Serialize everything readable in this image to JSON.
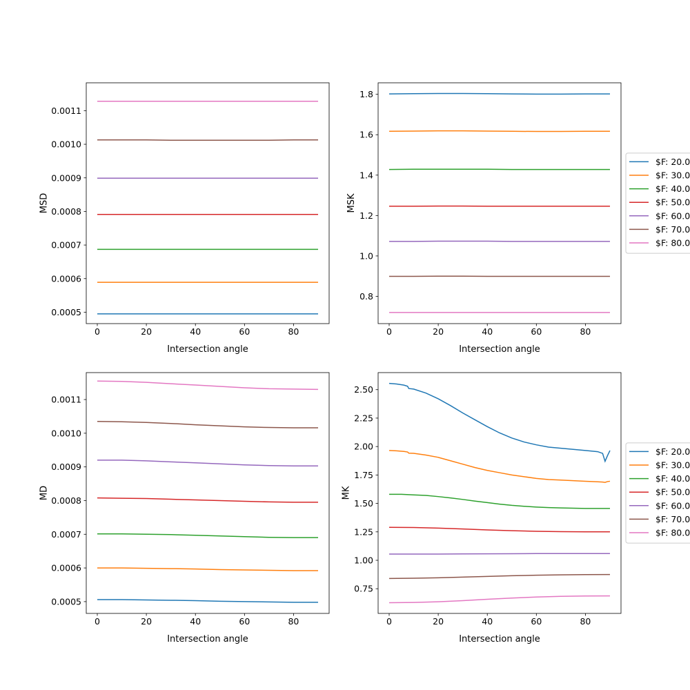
{
  "figure": {
    "series_colors": [
      "#1f77b4",
      "#ff7f0e",
      "#2ca02c",
      "#d62728",
      "#9467bd",
      "#8c564b",
      "#e377c2"
    ]
  },
  "chart_data": [
    {
      "id": "msd",
      "type": "line",
      "xlabel": "Intersection angle",
      "ylabel": "MSD",
      "xlim": [
        -4.5,
        94.5
      ],
      "ylim": [
        0.000466,
        0.001183
      ],
      "xticks": [
        0,
        20,
        40,
        60,
        80
      ],
      "xtick_labels": [
        "0",
        "20",
        "40",
        "60",
        "80"
      ],
      "yticks": [
        0.0005,
        0.0006,
        0.0007,
        0.0008,
        0.0009,
        0.001,
        0.0011
      ],
      "ytick_labels": [
        "0.0005",
        "0.0006",
        "0.0007",
        "0.0008",
        "0.0009",
        "0.0010",
        "0.0011"
      ],
      "x": [
        0,
        10,
        20,
        30,
        40,
        50,
        60,
        70,
        80,
        90
      ],
      "series": [
        {
          "values": [
            0.000495,
            0.000495,
            0.000495,
            0.000495,
            0.000495,
            0.000495,
            0.000495,
            0.000495,
            0.000495,
            0.000495
          ]
        },
        {
          "values": [
            0.000589,
            0.000589,
            0.000589,
            0.000589,
            0.000589,
            0.000589,
            0.000589,
            0.000589,
            0.000589,
            0.000589
          ]
        },
        {
          "values": [
            0.000687,
            0.000687,
            0.000687,
            0.000687,
            0.000687,
            0.000687,
            0.000687,
            0.000687,
            0.000687,
            0.000687
          ]
        },
        {
          "values": [
            0.000791,
            0.000791,
            0.000791,
            0.000791,
            0.000791,
            0.000791,
            0.000791,
            0.000791,
            0.000791,
            0.000791
          ]
        },
        {
          "values": [
            0.000899,
            0.000899,
            0.000899,
            0.000899,
            0.000899,
            0.000899,
            0.000899,
            0.000899,
            0.000899,
            0.000899
          ]
        },
        {
          "values": [
            0.001013,
            0.001013,
            0.001013,
            0.001012,
            0.001012,
            0.001012,
            0.001012,
            0.001012,
            0.001013,
            0.001013
          ]
        },
        {
          "values": [
            0.001128,
            0.001128,
            0.001128,
            0.001128,
            0.001128,
            0.001128,
            0.001128,
            0.001128,
            0.001128,
            0.001128
          ]
        }
      ]
    },
    {
      "id": "msk",
      "type": "line",
      "xlabel": "Intersection angle",
      "ylabel": "MSK",
      "xlim": [
        -4.5,
        94.5
      ],
      "ylim": [
        0.665,
        1.857
      ],
      "xticks": [
        0,
        20,
        40,
        60,
        80
      ],
      "xtick_labels": [
        "0",
        "20",
        "40",
        "60",
        "80"
      ],
      "yticks": [
        0.8,
        1.0,
        1.2,
        1.4,
        1.6,
        1.8
      ],
      "ytick_labels": [
        "0.8",
        "1.0",
        "1.2",
        "1.4",
        "1.6",
        "1.8"
      ],
      "legend_position": "right-outside",
      "legend": [
        "$F: 20.0",
        "$F: 30.0",
        "$F: 40.0",
        "$F: 50.0",
        "$F: 60.0",
        "$F: 70.0",
        "$F: 80.0"
      ],
      "x": [
        0,
        10,
        20,
        30,
        40,
        50,
        60,
        70,
        80,
        90
      ],
      "series": [
        {
          "values": [
            1.802,
            1.803,
            1.804,
            1.804,
            1.803,
            1.802,
            1.801,
            1.801,
            1.802,
            1.802
          ]
        },
        {
          "values": [
            1.617,
            1.618,
            1.619,
            1.619,
            1.618,
            1.617,
            1.616,
            1.616,
            1.617,
            1.617
          ]
        },
        {
          "values": [
            1.428,
            1.429,
            1.429,
            1.429,
            1.429,
            1.428,
            1.428,
            1.428,
            1.428,
            1.428
          ]
        },
        {
          "values": [
            1.246,
            1.246,
            1.247,
            1.247,
            1.246,
            1.246,
            1.246,
            1.246,
            1.246,
            1.246
          ]
        },
        {
          "values": [
            1.072,
            1.072,
            1.073,
            1.073,
            1.073,
            1.072,
            1.072,
            1.072,
            1.072,
            1.072
          ]
        },
        {
          "values": [
            0.899,
            0.899,
            0.9,
            0.9,
            0.899,
            0.899,
            0.899,
            0.899,
            0.899,
            0.899
          ]
        },
        {
          "values": [
            0.72,
            0.72,
            0.72,
            0.72,
            0.72,
            0.72,
            0.72,
            0.72,
            0.72,
            0.72
          ]
        }
      ]
    },
    {
      "id": "md",
      "type": "line",
      "xlabel": "Intersection angle",
      "ylabel": "MD",
      "xlim": [
        -4.5,
        94.5
      ],
      "ylim": [
        0.000465,
        0.00118
      ],
      "xticks": [
        0,
        20,
        40,
        60,
        80
      ],
      "xtick_labels": [
        "0",
        "20",
        "40",
        "60",
        "80"
      ],
      "yticks": [
        0.0005,
        0.0006,
        0.0007,
        0.0008,
        0.0009,
        0.001,
        0.0011
      ],
      "ytick_labels": [
        "0.0005",
        "0.0006",
        "0.0007",
        "0.0008",
        "0.0009",
        "0.0010",
        "0.0011"
      ],
      "x": [
        0,
        10,
        20,
        30,
        40,
        50,
        60,
        70,
        80,
        90
      ],
      "series": [
        {
          "values": [
            0.000506,
            0.000506,
            0.000505,
            0.000504,
            0.000503,
            0.000501,
            0.0005,
            0.000499,
            0.000498,
            0.000498
          ]
        },
        {
          "values": [
            0.0006,
            0.0006,
            0.000599,
            0.000598,
            0.000597,
            0.000595,
            0.000594,
            0.000593,
            0.000592,
            0.000592
          ]
        },
        {
          "values": [
            0.000701,
            0.000701,
            0.0007,
            0.000699,
            0.000697,
            0.000695,
            0.000693,
            0.000691,
            0.00069,
            0.00069
          ]
        },
        {
          "values": [
            0.000808,
            0.000807,
            0.000806,
            0.000804,
            0.000802,
            0.0008,
            0.000798,
            0.000796,
            0.000795,
            0.000795
          ]
        },
        {
          "values": [
            0.00092,
            0.00092,
            0.000918,
            0.000915,
            0.000912,
            0.000909,
            0.000906,
            0.000904,
            0.000903,
            0.000903
          ]
        },
        {
          "values": [
            0.001035,
            0.001034,
            0.001032,
            0.001029,
            0.001025,
            0.001022,
            0.001019,
            0.001017,
            0.001016,
            0.001016
          ]
        },
        {
          "values": [
            0.001155,
            0.001154,
            0.001151,
            0.001147,
            0.001143,
            0.001139,
            0.001135,
            0.001132,
            0.001131,
            0.00113
          ]
        }
      ]
    },
    {
      "id": "mk",
      "type": "line",
      "xlabel": "Intersection angle",
      "ylabel": "MK",
      "xlim": [
        -4.5,
        94.5
      ],
      "ylim": [
        0.533,
        2.65
      ],
      "xticks": [
        0,
        20,
        40,
        60,
        80
      ],
      "xtick_labels": [
        "0",
        "20",
        "40",
        "60",
        "80"
      ],
      "yticks": [
        0.75,
        1.0,
        1.25,
        1.5,
        1.75,
        2.0,
        2.25,
        2.5
      ],
      "ytick_labels": [
        "0.75",
        "1.00",
        "1.25",
        "1.50",
        "1.75",
        "2.00",
        "2.25",
        "2.50"
      ],
      "legend_position": "right-outside",
      "legend": [
        "$F: 20.0",
        "$F: 30.0",
        "$F: 40.0",
        "$F: 50.0",
        "$F: 60.0",
        "$F: 70.0",
        "$F: 80.0"
      ],
      "series": [
        {
          "x": [
            0,
            3,
            6,
            7.5,
            8,
            10,
            15,
            20,
            25,
            30,
            35,
            40,
            45,
            50,
            55,
            60,
            65,
            70,
            75,
            80,
            85,
            87,
            88,
            89,
            90
          ],
          "values": [
            2.555,
            2.55,
            2.54,
            2.53,
            2.51,
            2.505,
            2.47,
            2.42,
            2.36,
            2.295,
            2.235,
            2.175,
            2.12,
            2.075,
            2.04,
            2.015,
            1.995,
            1.985,
            1.975,
            1.965,
            1.955,
            1.94,
            1.87,
            1.92,
            1.965
          ]
        },
        {
          "x": [
            0,
            3,
            6,
            7.5,
            8,
            10,
            15,
            20,
            25,
            30,
            35,
            40,
            45,
            50,
            55,
            60,
            65,
            70,
            75,
            80,
            85,
            87,
            88,
            89,
            90
          ],
          "values": [
            1.965,
            1.962,
            1.957,
            1.952,
            1.942,
            1.94,
            1.925,
            1.905,
            1.875,
            1.845,
            1.815,
            1.79,
            1.77,
            1.75,
            1.735,
            1.72,
            1.71,
            1.705,
            1.7,
            1.695,
            1.69,
            1.688,
            1.685,
            1.692,
            1.695
          ]
        },
        {
          "x": [
            0,
            5,
            10,
            15,
            20,
            25,
            30,
            35,
            40,
            45,
            50,
            55,
            60,
            65,
            70,
            75,
            80,
            85,
            90
          ],
          "values": [
            1.58,
            1.58,
            1.575,
            1.57,
            1.56,
            1.548,
            1.535,
            1.52,
            1.507,
            1.494,
            1.483,
            1.475,
            1.468,
            1.463,
            1.46,
            1.458,
            1.456,
            1.456,
            1.456
          ]
        },
        {
          "x": [
            0,
            10,
            20,
            30,
            40,
            50,
            60,
            70,
            80,
            90
          ],
          "values": [
            1.29,
            1.288,
            1.283,
            1.275,
            1.267,
            1.26,
            1.255,
            1.252,
            1.25,
            1.25
          ]
        },
        {
          "x": [
            0,
            10,
            20,
            30,
            40,
            50,
            60,
            70,
            80,
            90
          ],
          "values": [
            1.055,
            1.055,
            1.055,
            1.056,
            1.057,
            1.058,
            1.059,
            1.059,
            1.059,
            1.059
          ]
        },
        {
          "x": [
            0,
            10,
            20,
            30,
            40,
            50,
            60,
            70,
            80,
            90
          ],
          "values": [
            0.84,
            0.842,
            0.846,
            0.852,
            0.858,
            0.864,
            0.869,
            0.872,
            0.874,
            0.875
          ]
        },
        {
          "x": [
            0,
            10,
            20,
            30,
            40,
            50,
            60,
            70,
            80,
            90
          ],
          "values": [
            0.627,
            0.629,
            0.635,
            0.645,
            0.657,
            0.668,
            0.677,
            0.683,
            0.686,
            0.687
          ]
        }
      ]
    }
  ]
}
